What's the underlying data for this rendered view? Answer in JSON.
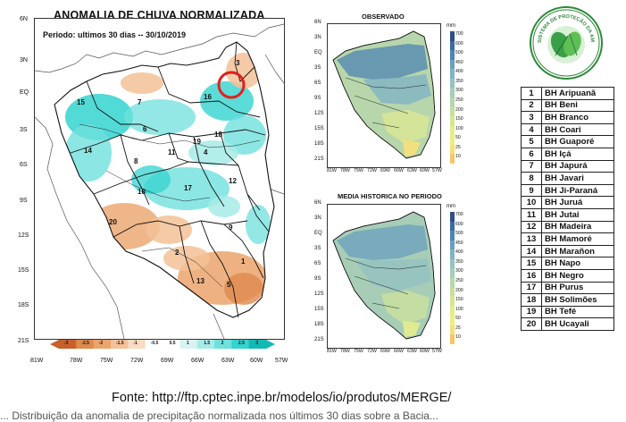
{
  "main_map": {
    "title": "ANOMALIA DE CHUVA NORMALIZADA",
    "period_label": "Periodo: ultimos 30 dias -- 30/10/2019",
    "y_ticks": [
      "6N",
      "3N",
      "EQ",
      "3S",
      "6S",
      "9S",
      "12S",
      "15S",
      "18S",
      "21S"
    ],
    "x_ticks": [
      "81W",
      "78W",
      "75W",
      "72W",
      "69W",
      "66W",
      "63W",
      "60W",
      "57W"
    ],
    "basin_labels": [
      "1",
      "2",
      "3",
      "4",
      "5",
      "6",
      "7",
      "8",
      "9",
      "10",
      "11",
      "12",
      "13",
      "14",
      "15",
      "16",
      "17",
      "18",
      "19",
      "20"
    ],
    "colorbar_ticks": [
      "-3",
      "-2.5",
      "-2",
      "-1.5",
      "-1",
      "-0.5",
      "0.5",
      "1",
      "1.5",
      "2",
      "2.5",
      "3"
    ],
    "colorbar_colors": [
      "#c8602a",
      "#de8a4d",
      "#eba46c",
      "#f3c197",
      "#f8dcc3",
      "#ffffff",
      "#ffffff",
      "#d7f4f2",
      "#a6ebe8",
      "#6fe0dc",
      "#33d3cf",
      "#12b9b5"
    ]
  },
  "observed_map": {
    "title": "OBSERVADO",
    "unit": "mm",
    "y_ticks": [
      "6N",
      "3N",
      "EQ",
      "3S",
      "6S",
      "9S",
      "12S",
      "15S",
      "18S",
      "21S"
    ],
    "x_ticks": [
      "81W",
      "78W",
      "75W",
      "72W",
      "69W",
      "66W",
      "63W",
      "60W",
      "57W"
    ],
    "legend_ticks": [
      "700",
      "600",
      "500",
      "450",
      "400",
      "350",
      "300",
      "250",
      "200",
      "150",
      "100",
      "50",
      "25",
      "10"
    ]
  },
  "historical_map": {
    "title": "MEDIA HISTORICA NO PERIODO",
    "unit": "mm",
    "y_ticks": [
      "6N",
      "3N",
      "EQ",
      "3S",
      "6S",
      "9S",
      "12S",
      "15S",
      "18S",
      "21S"
    ],
    "x_ticks": [
      "81W",
      "78W",
      "75W",
      "72W",
      "69W",
      "66W",
      "63W",
      "60W",
      "57W"
    ],
    "legend_ticks": [
      "700",
      "600",
      "500",
      "450",
      "400",
      "350",
      "300",
      "250",
      "200",
      "150",
      "100",
      "50",
      "25",
      "10"
    ]
  },
  "legend_colors": [
    "#2f4f86",
    "#3d6aa0",
    "#4f84b3",
    "#6a9fbf",
    "#80b3c4",
    "#95c2c2",
    "#a7cdb7",
    "#b7d6ab",
    "#c8dfa0",
    "#d7e696",
    "#e3ec8e",
    "#eded86",
    "#f3e07a",
    "#f6c56a"
  ],
  "logo_text": "SISTEMA DE PROTEÇÃO DA AMAZÔNIA · SIPAM",
  "basins_table": [
    {
      "num": "1",
      "name": "BH Aripuanã"
    },
    {
      "num": "2",
      "name": "BH Beni"
    },
    {
      "num": "3",
      "name": "BH Branco"
    },
    {
      "num": "4",
      "name": "BH Coari"
    },
    {
      "num": "5",
      "name": "BH Guaporé"
    },
    {
      "num": "6",
      "name": "BH Içá"
    },
    {
      "num": "7",
      "name": "BH Japurá"
    },
    {
      "num": "8",
      "name": "BH Javari"
    },
    {
      "num": "9",
      "name": "BH Ji-Paraná"
    },
    {
      "num": "10",
      "name": "BH Juruá"
    },
    {
      "num": "11",
      "name": "BH Jutai"
    },
    {
      "num": "12",
      "name": "BH Madeira"
    },
    {
      "num": "13",
      "name": "BH Mamoré"
    },
    {
      "num": "14",
      "name": "BH Marañon"
    },
    {
      "num": "15",
      "name": "BH Napo"
    },
    {
      "num": "16",
      "name": "BH Negro"
    },
    {
      "num": "17",
      "name": "BH Purus"
    },
    {
      "num": "18",
      "name": "BH Solimões"
    },
    {
      "num": "19",
      "name": "BH Tefé"
    },
    {
      "num": "20",
      "name": "BH Ucayali"
    }
  ],
  "source": "Fonte: http://ftp.cptec.inpe.br/modelos/io/produtos/MERGE/",
  "caption": "... Distribuição da anomalia de precipitação normalizada nos últimos 30 dias sobre a Bacia..."
}
